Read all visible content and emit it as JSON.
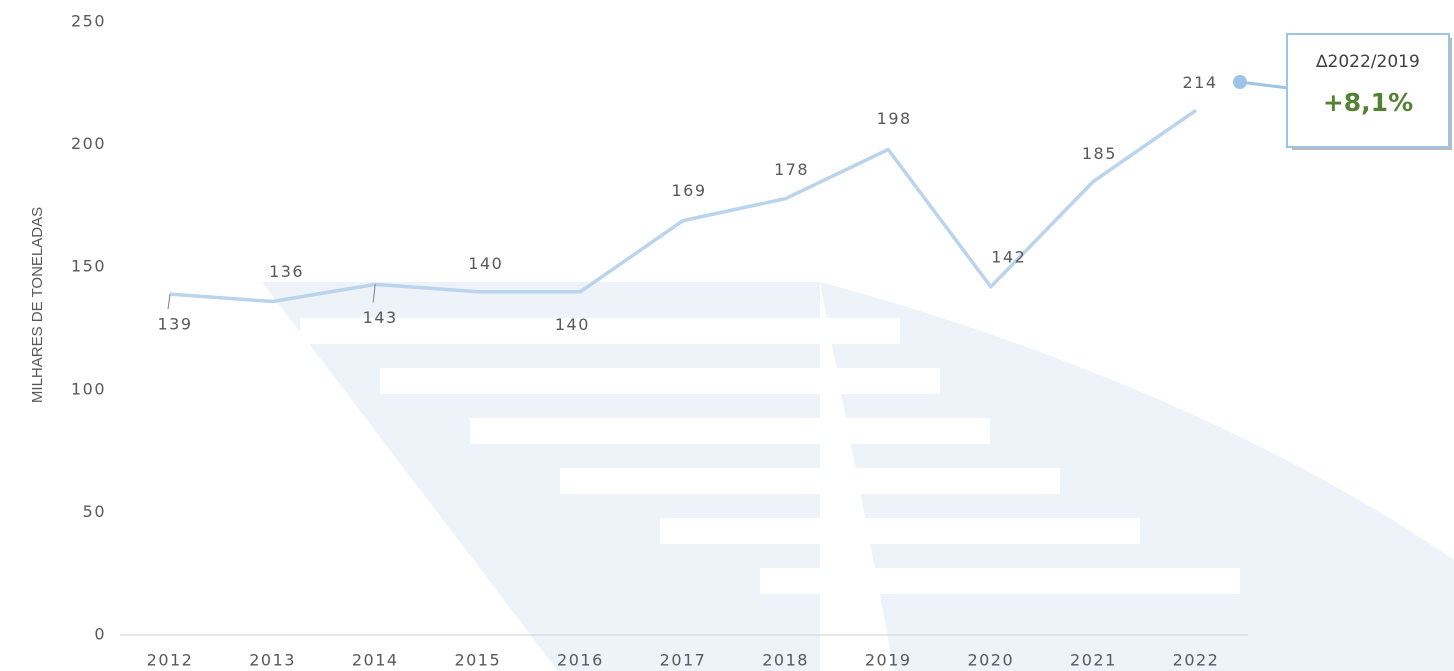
{
  "chart_data": {
    "type": "line",
    "y_label": "MILHARES DE TONELADAS",
    "categories": [
      "2012",
      "2013",
      "2014",
      "2015",
      "2016",
      "2017",
      "2018",
      "2019",
      "2020",
      "2021",
      "2022"
    ],
    "values": [
      139,
      136,
      143,
      140,
      140,
      169,
      178,
      198,
      142,
      185,
      214
    ],
    "color": "#b9d4ec",
    "ylim": [
      0,
      250
    ],
    "yticks": [
      0,
      50,
      100,
      150,
      200,
      250
    ],
    "annotation": {
      "title": "∆2022/2019",
      "value": "+8,1%"
    }
  }
}
